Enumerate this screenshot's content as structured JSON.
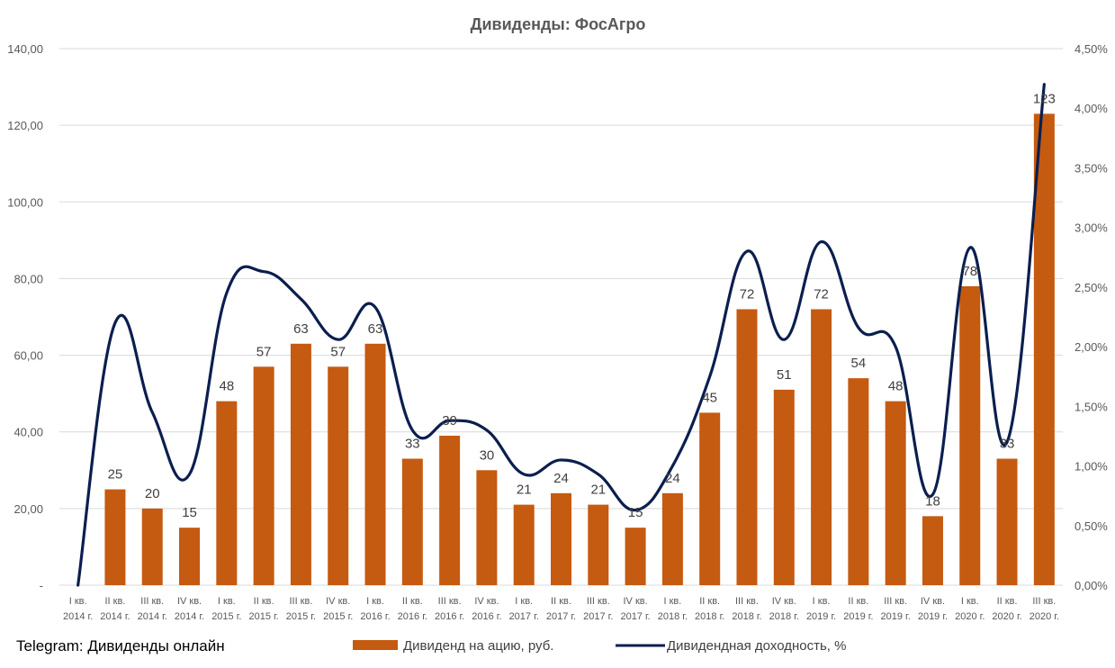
{
  "watermark": "Telegram: Дивиденды онлайн",
  "colors": {
    "bar": "#C55A11",
    "line": "#0B1E4F",
    "grid": "#D9D9D9",
    "text": "#595959"
  },
  "chart_data": {
    "type": "bar+line",
    "title": "Дивиденды: ФосАгро",
    "categories": [
      [
        "I кв.",
        "2014 г."
      ],
      [
        "II кв.",
        "2014 г."
      ],
      [
        "III кв.",
        "2014 г."
      ],
      [
        "IV кв.",
        "2014 г."
      ],
      [
        "I кв.",
        "2015 г."
      ],
      [
        "II кв.",
        "2015 г."
      ],
      [
        "III кв.",
        "2015 г."
      ],
      [
        "IV кв.",
        "2015 г."
      ],
      [
        "I кв.",
        "2016 г."
      ],
      [
        "II кв.",
        "2016 г."
      ],
      [
        "III кв.",
        "2016 г."
      ],
      [
        "IV кв.",
        "2016 г."
      ],
      [
        "I кв.",
        "2017 г."
      ],
      [
        "II кв.",
        "2017 г."
      ],
      [
        "III кв.",
        "2017 г."
      ],
      [
        "IV кв.",
        "2017 г."
      ],
      [
        "I кв.",
        "2018 г."
      ],
      [
        "II кв.",
        "2018 г."
      ],
      [
        "III кв.",
        "2018 г."
      ],
      [
        "IV кв.",
        "2018 г."
      ],
      [
        "I кв.",
        "2019 г."
      ],
      [
        "II кв.",
        "2019 г."
      ],
      [
        "III кв.",
        "2019 г."
      ],
      [
        "IV кв.",
        "2019 г."
      ],
      [
        "I кв.",
        "2020 г."
      ],
      [
        "II кв.",
        "2020 г."
      ],
      [
        "III кв.",
        "2020 г."
      ]
    ],
    "left_axis": {
      "ylim": [
        0,
        140
      ],
      "ticks": [
        0,
        20,
        40,
        60,
        80,
        100,
        120,
        140
      ],
      "tick_labels": [
        "-",
        "20,00",
        "40,00",
        "60,00",
        "80,00",
        "100,00",
        "120,00",
        "140,00"
      ]
    },
    "right_axis": {
      "ylim": [
        0,
        4.5
      ],
      "ticks": [
        0,
        0.5,
        1,
        1.5,
        2,
        2.5,
        3,
        3.5,
        4,
        4.5
      ],
      "tick_labels": [
        "0,00%",
        "0,50%",
        "1,00%",
        "1,50%",
        "2,00%",
        "2,50%",
        "3,00%",
        "3,50%",
        "4,00%",
        "4,50%"
      ]
    },
    "series": [
      {
        "name": "Дивиденд на ацию, руб.",
        "type": "bar",
        "axis": "left",
        "values": [
          0,
          25,
          20,
          15,
          48,
          57,
          63,
          57,
          63,
          33,
          39,
          30,
          21,
          24,
          21,
          15,
          24,
          45,
          72,
          51,
          72,
          54,
          48,
          18,
          78,
          33,
          123
        ],
        "labels": [
          "",
          "25",
          "20",
          "15",
          "48",
          "57",
          "63",
          "57",
          "63",
          "33",
          "39",
          "30",
          "21",
          "24",
          "21",
          "15",
          "24",
          "45",
          "72",
          "51",
          "72",
          "54",
          "48",
          "18",
          "78",
          "33",
          "123"
        ]
      },
      {
        "name": "Дивидендная доходность, %",
        "type": "line",
        "smooth": true,
        "axis": "right",
        "values": [
          0,
          2.2,
          1.45,
          0.93,
          2.45,
          2.63,
          2.4,
          2.06,
          2.33,
          1.3,
          1.38,
          1.3,
          0.93,
          1.05,
          0.93,
          0.63,
          1.0,
          1.75,
          2.8,
          2.06,
          2.88,
          2.16,
          2.0,
          0.76,
          2.83,
          1.2,
          4.2
        ]
      }
    ],
    "legend_position": "bottom",
    "grid": true
  }
}
